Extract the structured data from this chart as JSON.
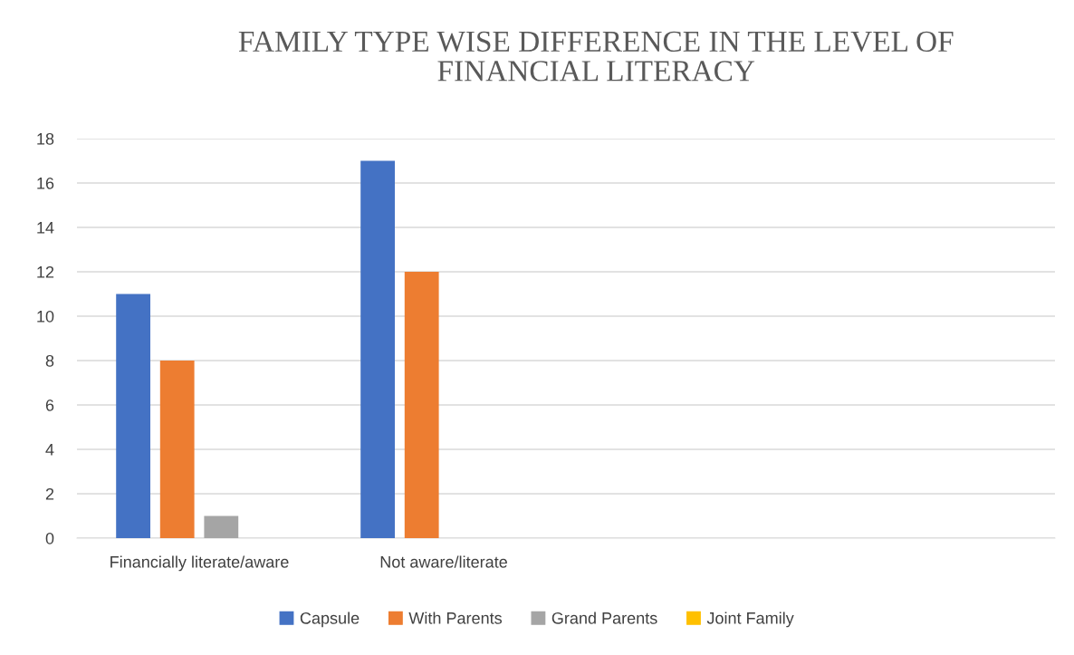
{
  "chart_data": {
    "type": "bar",
    "title": "FAMILY TYPE WISE DIFFERENCE IN THE LEVEL OF\nFINANCIAL LITERACY",
    "categories": [
      "Financially literate/aware",
      "Not aware/literate",
      null,
      null
    ],
    "series": [
      {
        "name": "Capsule",
        "color": "#4472c4",
        "values": [
          11,
          17,
          null,
          null
        ]
      },
      {
        "name": "With Parents",
        "color": "#ed7d31",
        "values": [
          8,
          12,
          null,
          null
        ]
      },
      {
        "name": "Grand Parents",
        "color": "#a5a5a5",
        "values": [
          1,
          0,
          null,
          null
        ]
      },
      {
        "name": "Joint Family",
        "color": "#ffc000",
        "values": [
          0,
          0,
          null,
          null
        ]
      }
    ],
    "ylim": [
      0,
      18
    ],
    "yticks": [
      0,
      2,
      4,
      6,
      8,
      10,
      12,
      14,
      16,
      18
    ],
    "grid": "y",
    "legend": "bottom"
  }
}
